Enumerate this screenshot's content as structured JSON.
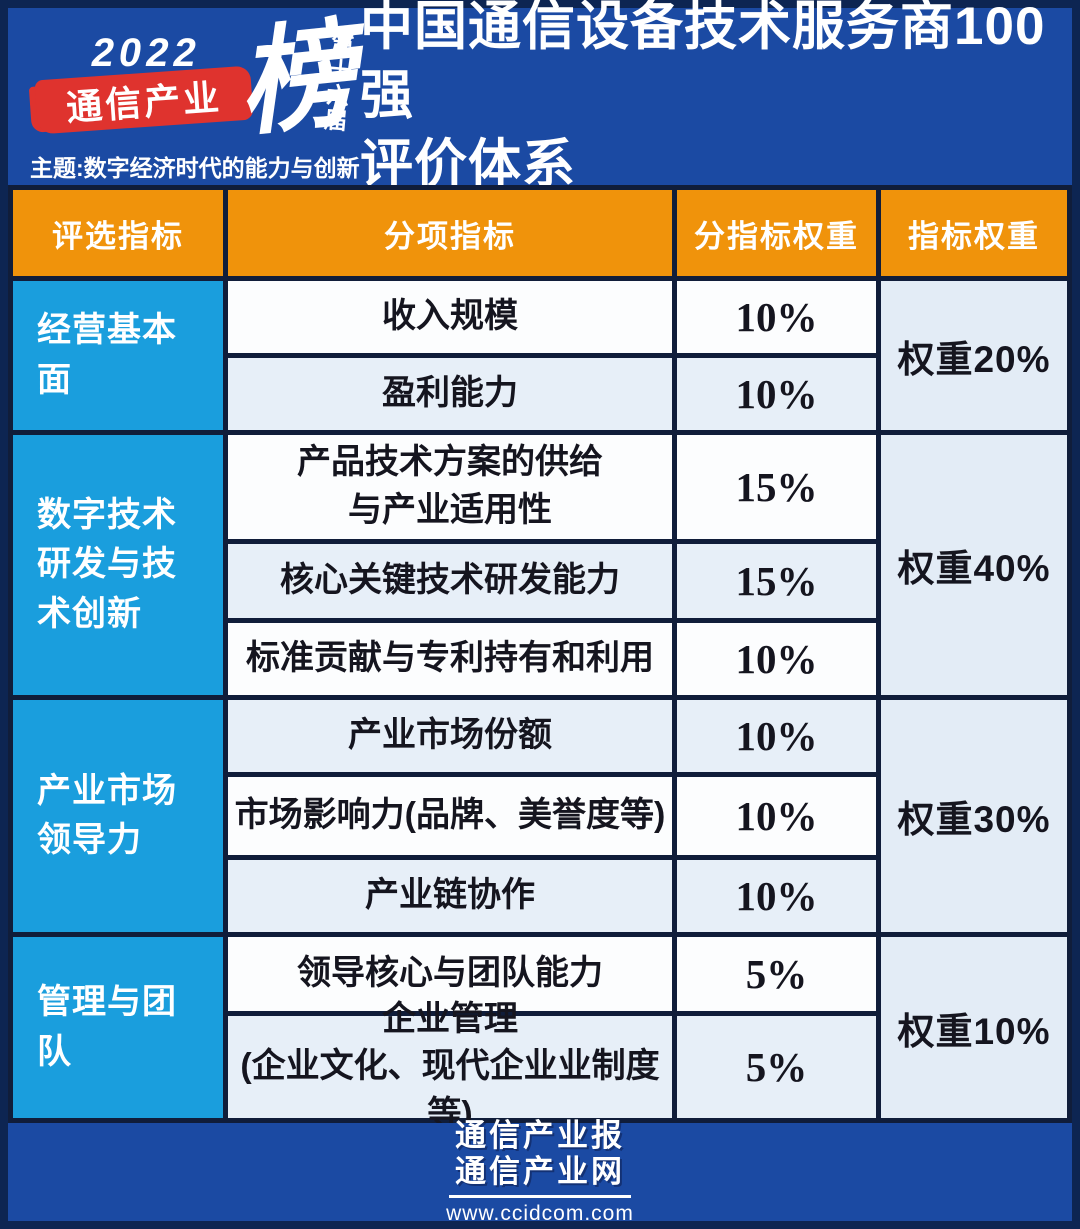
{
  "header": {
    "logo": {
      "year": "2022",
      "brand": "通信产业",
      "bang": "榜",
      "edition": "第十六届",
      "theme": "主题:数字经济时代的能力与创新"
    },
    "title_line1": "中国通信设备技术服务商100强",
    "title_line2": "评价体系"
  },
  "table": {
    "columns": [
      "评选指标",
      "分项指标",
      "分指标权重",
      "指标权重"
    ],
    "groups": [
      {
        "category": "经营基本面",
        "weight": "权重20%",
        "subs": [
          {
            "name": "收入规模",
            "weight": "10%"
          },
          {
            "name": "盈利能力",
            "weight": "10%"
          }
        ]
      },
      {
        "category": "数字技术研发与技术创新",
        "weight": "权重40%",
        "subs": [
          {
            "name": "产品技术方案的供给\n与产业适用性",
            "weight": "15%"
          },
          {
            "name": "核心关键技术研发能力",
            "weight": "15%"
          },
          {
            "name": "标准贡献与专利持有和利用",
            "weight": "10%"
          }
        ]
      },
      {
        "category": "产业市场领导力",
        "weight": "权重30%",
        "subs": [
          {
            "name": "产业市场份额",
            "weight": "10%"
          },
          {
            "name": "市场影响力(品牌、美誉度等)",
            "weight": "10%"
          },
          {
            "name": "产业链协作",
            "weight": "10%"
          }
        ]
      },
      {
        "category": "管理与团队",
        "weight": "权重10%",
        "subs": [
          {
            "name": "领导核心与团队能力",
            "weight": "5%"
          },
          {
            "name": "企业管理\n(企业文化、现代企业业制度等)",
            "weight": "5%"
          }
        ]
      }
    ]
  },
  "footer": {
    "line1": "通信产业报",
    "line2": "通信产业网",
    "url": "www.ccidcom.com"
  },
  "colors": {
    "frame_navy": "#0d2552",
    "header_blue": "#1b4aa3",
    "table_header_orange": "#f0930b",
    "category_cyan": "#1a9edd",
    "row_light_blue": "#e7eff8",
    "weight_col_bg": "#e3ecf6",
    "logo_red": "#df332e",
    "grid_line": "#101d3a"
  },
  "chart_data": {
    "type": "table",
    "title": "中国通信设备技术服务商100强 评价体系",
    "columns": [
      "评选指标",
      "分项指标",
      "分指标权重",
      "指标权重"
    ],
    "rows": [
      [
        "经营基本面",
        "收入规模",
        "10%",
        "权重20%"
      ],
      [
        "经营基本面",
        "盈利能力",
        "10%",
        "权重20%"
      ],
      [
        "数字技术研发与技术创新",
        "产品技术方案的供给与产业适用性",
        "15%",
        "权重40%"
      ],
      [
        "数字技术研发与技术创新",
        "核心关键技术研发能力",
        "15%",
        "权重40%"
      ],
      [
        "数字技术研发与技术创新",
        "标准贡献与专利持有和利用",
        "10%",
        "权重40%"
      ],
      [
        "产业市场领导力",
        "产业市场份额",
        "10%",
        "权重30%"
      ],
      [
        "产业市场领导力",
        "市场影响力(品牌、美誉度等)",
        "10%",
        "权重30%"
      ],
      [
        "产业市场领导力",
        "产业链协作",
        "10%",
        "权重30%"
      ],
      [
        "管理与团队",
        "领导核心与团队能力",
        "5%",
        "权重10%"
      ],
      [
        "管理与团队",
        "企业管理(企业文化、现代企业业制度等)",
        "5%",
        "权重10%"
      ]
    ],
    "group_weights": {
      "经营基本面": 20,
      "数字技术研发与技术创新": 40,
      "产业市场领导力": 30,
      "管理与团队": 10
    }
  }
}
